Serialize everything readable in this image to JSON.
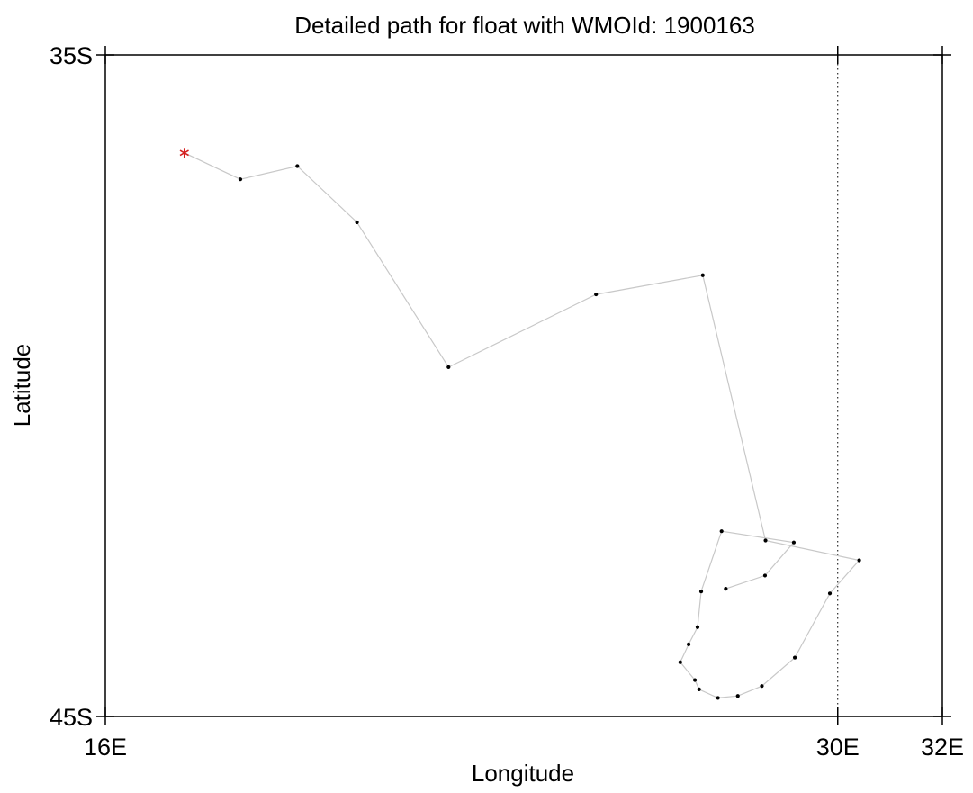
{
  "chart_data": {
    "type": "line",
    "title": "Detailed path for float with WMOId: 1900163",
    "xlabel": "Longitude",
    "ylabel": "Latitude",
    "xlim": [
      16,
      32
    ],
    "ylim": [
      -45,
      -35
    ],
    "x_ticks": [
      {
        "value": 16,
        "label": "16E"
      },
      {
        "value": 30,
        "label": "30E"
      },
      {
        "value": 32,
        "label": "32E"
      }
    ],
    "y_ticks": [
      {
        "value": -35,
        "label": "35S"
      },
      {
        "value": -45,
        "label": "45S"
      }
    ],
    "reference_line": {
      "axis": "x",
      "value": 30,
      "style": "dotted"
    },
    "grid": false,
    "series": [
      {
        "line_color": "#c8c8c8",
        "marker_color": "#000000",
        "start_marker": {
          "symbol": "asterisk",
          "color": "#d42020"
        },
        "points": [
          {
            "lon": 17.51,
            "lat": -36.48
          },
          {
            "lon": 18.58,
            "lat": -36.88
          },
          {
            "lon": 19.67,
            "lat": -36.68
          },
          {
            "lon": 20.81,
            "lat": -37.53
          },
          {
            "lon": 22.56,
            "lat": -39.72
          },
          {
            "lon": 25.38,
            "lat": -38.62
          },
          {
            "lon": 27.42,
            "lat": -38.33
          },
          {
            "lon": 28.62,
            "lat": -42.34
          },
          {
            "lon": 30.41,
            "lat": -42.64
          },
          {
            "lon": 29.85,
            "lat": -43.14
          },
          {
            "lon": 29.18,
            "lat": -44.11
          },
          {
            "lon": 28.55,
            "lat": -44.54
          },
          {
            "lon": 28.09,
            "lat": -44.69
          },
          {
            "lon": 27.71,
            "lat": -44.72
          },
          {
            "lon": 27.35,
            "lat": -44.59
          },
          {
            "lon": 27.27,
            "lat": -44.45
          },
          {
            "lon": 26.99,
            "lat": -44.18
          },
          {
            "lon": 27.15,
            "lat": -43.91
          },
          {
            "lon": 27.32,
            "lat": -43.65
          },
          {
            "lon": 27.39,
            "lat": -43.11
          },
          {
            "lon": 27.78,
            "lat": -42.2
          },
          {
            "lon": 29.16,
            "lat": -42.37
          },
          {
            "lon": 28.61,
            "lat": -42.87
          },
          {
            "lon": 27.86,
            "lat": -43.07
          }
        ]
      }
    ]
  }
}
